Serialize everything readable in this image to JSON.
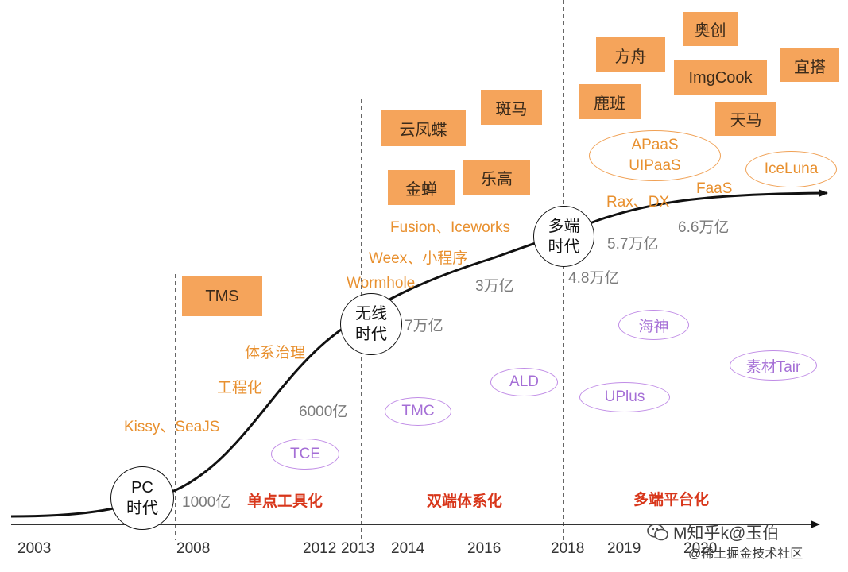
{
  "years": [
    "2003",
    "2008",
    "2012",
    "2013",
    "2014",
    "2016",
    "2018",
    "2019",
    "2020"
  ],
  "eras": [
    {
      "line1": "PC",
      "line2": "时代"
    },
    {
      "line1": "无线",
      "line2": "时代"
    },
    {
      "line1": "多端",
      "line2": "时代"
    }
  ],
  "phases": [
    "单点工具化",
    "双端体系化",
    "多端平台化"
  ],
  "gmv": [
    "1000亿",
    "6000亿",
    "7万亿",
    "3万亿",
    "4.8万亿",
    "5.7万亿",
    "6.6万亿"
  ],
  "tech_labels": [
    "Kissy、SeaJS",
    "工程化",
    "体系治理",
    "Wormhole",
    "Weex、小程序",
    "Fusion、Iceworks",
    "Rax、DX",
    "FaaS"
  ],
  "orange_boxes": [
    "TMS",
    "云凤蝶",
    "斑马",
    "金蝉",
    "乐高",
    "方舟",
    "奥创",
    "鹿班",
    "ImgCook",
    "宜搭",
    "天马"
  ],
  "orange_ovals": [
    {
      "line1": "APaaS",
      "line2": "UIPaaS"
    },
    {
      "line1": "IceLuna"
    }
  ],
  "purple_ovals": [
    "TCE",
    "TMC",
    "ALD",
    "海神",
    "UPlus",
    "素材Tair"
  ],
  "watermark": {
    "line1": "M知乎k@玉伯",
    "line2": "@稀土掘金技术社区"
  },
  "colors": {
    "orange_box": "#f5a45b",
    "orange_text": "#e8902f",
    "purple": "#a56fd6",
    "phase_red": "#d8361a",
    "gmv_gray": "#7b7b7b",
    "axis": "#333333"
  }
}
